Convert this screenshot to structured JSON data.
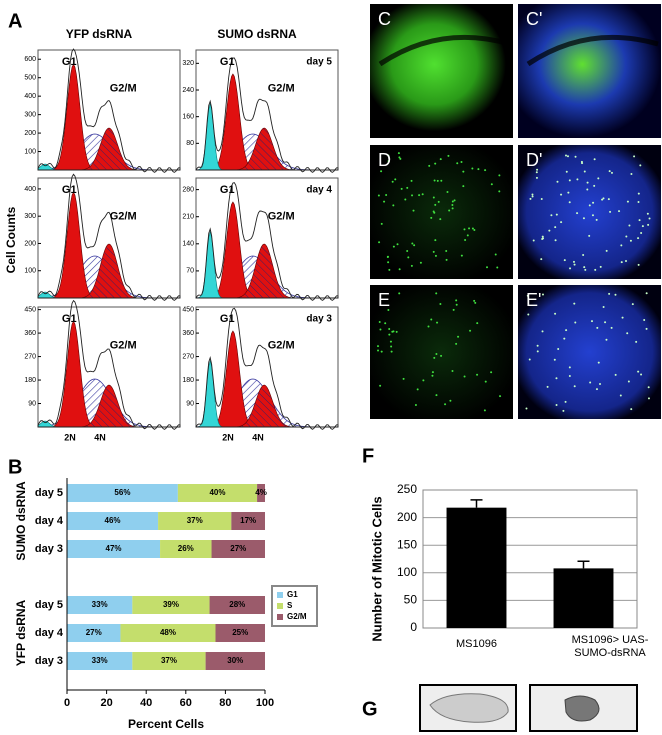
{
  "panel_labels": {
    "a": "A",
    "b": "B",
    "f": "F",
    "g": "G"
  },
  "panel_a": {
    "column_titles": [
      "YFP dsRNA",
      "SUMO dsRNA"
    ],
    "ylabel": "Cell Counts",
    "x_marks": [
      "2N",
      "4N"
    ],
    "subplots": [
      {
        "column": 0,
        "row": 0,
        "g1": "G1",
        "g2m": "G2/M",
        "ylim": [
          0,
          650
        ],
        "yticks": [
          100,
          200,
          300,
          400,
          500,
          600
        ]
      },
      {
        "column": 1,
        "row": 0,
        "g1": "G1",
        "g2m": "G2/M",
        "day": "day 5",
        "ylim": [
          0,
          360
        ],
        "yticks": [
          80,
          160,
          240,
          320
        ]
      },
      {
        "column": 0,
        "row": 1,
        "g1": "G1",
        "g2m": "G2/M",
        "ylim": [
          0,
          440
        ],
        "yticks": [
          100,
          200,
          300,
          400
        ]
      },
      {
        "column": 1,
        "row": 1,
        "g1": "G1",
        "g2m": "G2/M",
        "day": "day 4",
        "ylim": [
          0,
          310
        ],
        "yticks": [
          70,
          140,
          210,
          280
        ]
      },
      {
        "column": 0,
        "row": 2,
        "g1": "G1",
        "g2m": "G2/M",
        "ylim": [
          0,
          460
        ],
        "yticks": [
          90,
          180,
          270,
          360,
          450
        ]
      },
      {
        "column": 1,
        "row": 2,
        "g1": "G1",
        "g2m": "G2/M",
        "day": "day 3",
        "ylim": [
          0,
          460
        ],
        "yticks": [
          90,
          180,
          270,
          360,
          450
        ]
      }
    ]
  },
  "microscopy": {
    "labels": [
      "C",
      "C'",
      "D",
      "D'",
      "E",
      "E'"
    ]
  },
  "chart_data": [
    {
      "type": "stacked_bar_h",
      "categories": [
        "day 5",
        "day 4",
        "day 3",
        "day 5",
        "day 4",
        "day 3"
      ],
      "group_labels": [
        "SUMO dsRNA",
        "YFP dsRNA"
      ],
      "xlabel": "Percent Cells",
      "xlim": [
        0,
        100
      ],
      "xticks": [
        0,
        20,
        40,
        60,
        80,
        100
      ],
      "legend": "right",
      "series": [
        {
          "name": "G1",
          "color": "#8fcfee",
          "values": [
            56,
            46,
            47,
            33,
            27,
            33
          ],
          "value_labels": [
            "56%",
            "46%",
            "47%",
            "33%",
            "27%",
            "33%"
          ]
        },
        {
          "name": "S",
          "color": "#c4de6c",
          "values": [
            40,
            37,
            26,
            39,
            48,
            37
          ],
          "value_labels": [
            "40%",
            "37%",
            "26%",
            "39%",
            "48%",
            "37%"
          ]
        },
        {
          "name": "G2/M",
          "color": "#9b5b6b",
          "values": [
            4,
            17,
            27,
            28,
            25,
            30
          ],
          "value_labels": [
            "4%",
            "17%",
            "27%",
            "28%",
            "25%",
            "30%"
          ]
        }
      ]
    },
    {
      "type": "bar",
      "ylabel": "Number of Mitotic Cells",
      "categories": [
        "MS1096",
        "MS1096> UAS-SUMO-dsRNA"
      ],
      "values": [
        218,
        108
      ],
      "errors": [
        14,
        13
      ],
      "color": "#000000",
      "ylim": [
        0,
        250
      ],
      "yticks": [
        0,
        50,
        100,
        150,
        200,
        250
      ],
      "grid": true
    }
  ]
}
